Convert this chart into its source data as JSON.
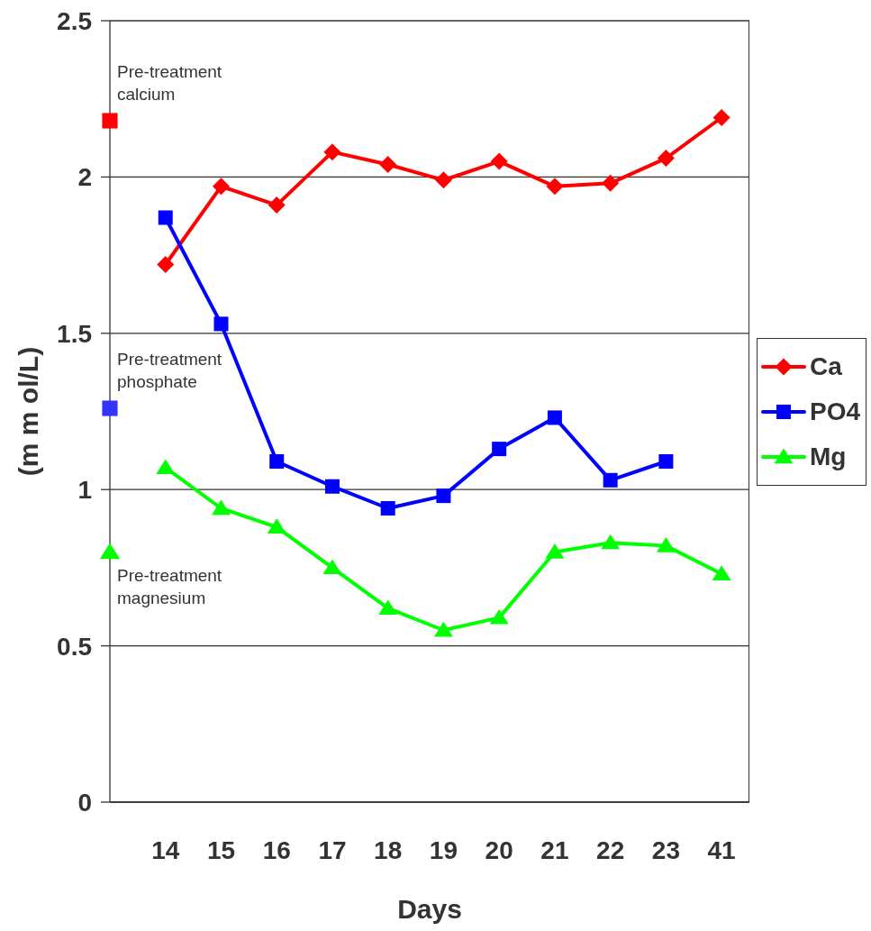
{
  "chart_data": {
    "type": "line",
    "xlabel": "Days",
    "ylabel": "(m m ol/L)",
    "categories": [
      null,
      "14",
      "15",
      "16",
      "17",
      "18",
      "19",
      "20",
      "21",
      "22",
      "23",
      "41"
    ],
    "series": [
      {
        "name": "Ca",
        "color": "#ff0000",
        "marker": "diamond",
        "values": [
          null,
          1.72,
          1.97,
          1.91,
          2.08,
          2.04,
          1.99,
          2.05,
          1.97,
          1.98,
          2.06,
          2.19
        ]
      },
      {
        "name": "PO4",
        "color": "#0000ff",
        "marker": "square",
        "values": [
          null,
          1.87,
          1.53,
          1.09,
          1.01,
          0.94,
          0.98,
          1.13,
          1.23,
          1.03,
          1.09,
          null
        ]
      },
      {
        "name": "Mg",
        "color": "#00ff00",
        "marker": "triangle",
        "values": [
          null,
          1.07,
          0.94,
          0.88,
          0.75,
          0.62,
          0.55,
          0.59,
          0.8,
          0.83,
          0.82,
          0.73
        ]
      },
      {
        "name": "Pre-treatment calcium",
        "type": "scatter",
        "color": "#ff0000",
        "marker": "square",
        "values": [
          2.18,
          null,
          null,
          null,
          null,
          null,
          null,
          null,
          null,
          null,
          null,
          null
        ]
      },
      {
        "name": "Pre-treatment phosphate",
        "type": "scatter",
        "color": "#3333ff",
        "marker": "square",
        "values": [
          1.26,
          null,
          null,
          null,
          null,
          null,
          null,
          null,
          null,
          null,
          null,
          null
        ]
      },
      {
        "name": "Pre-treatment magnesium",
        "type": "scatter",
        "color": "#00ff00",
        "marker": "triangle",
        "values": [
          0.8,
          null,
          null,
          null,
          null,
          null,
          null,
          null,
          null,
          null,
          null,
          null
        ]
      }
    ],
    "ylim": [
      0,
      2.5
    ],
    "yticks": [
      0,
      0.5,
      1,
      1.5,
      2,
      2.5
    ],
    "grid": "y",
    "legend": "right",
    "line_style": "solid"
  }
}
